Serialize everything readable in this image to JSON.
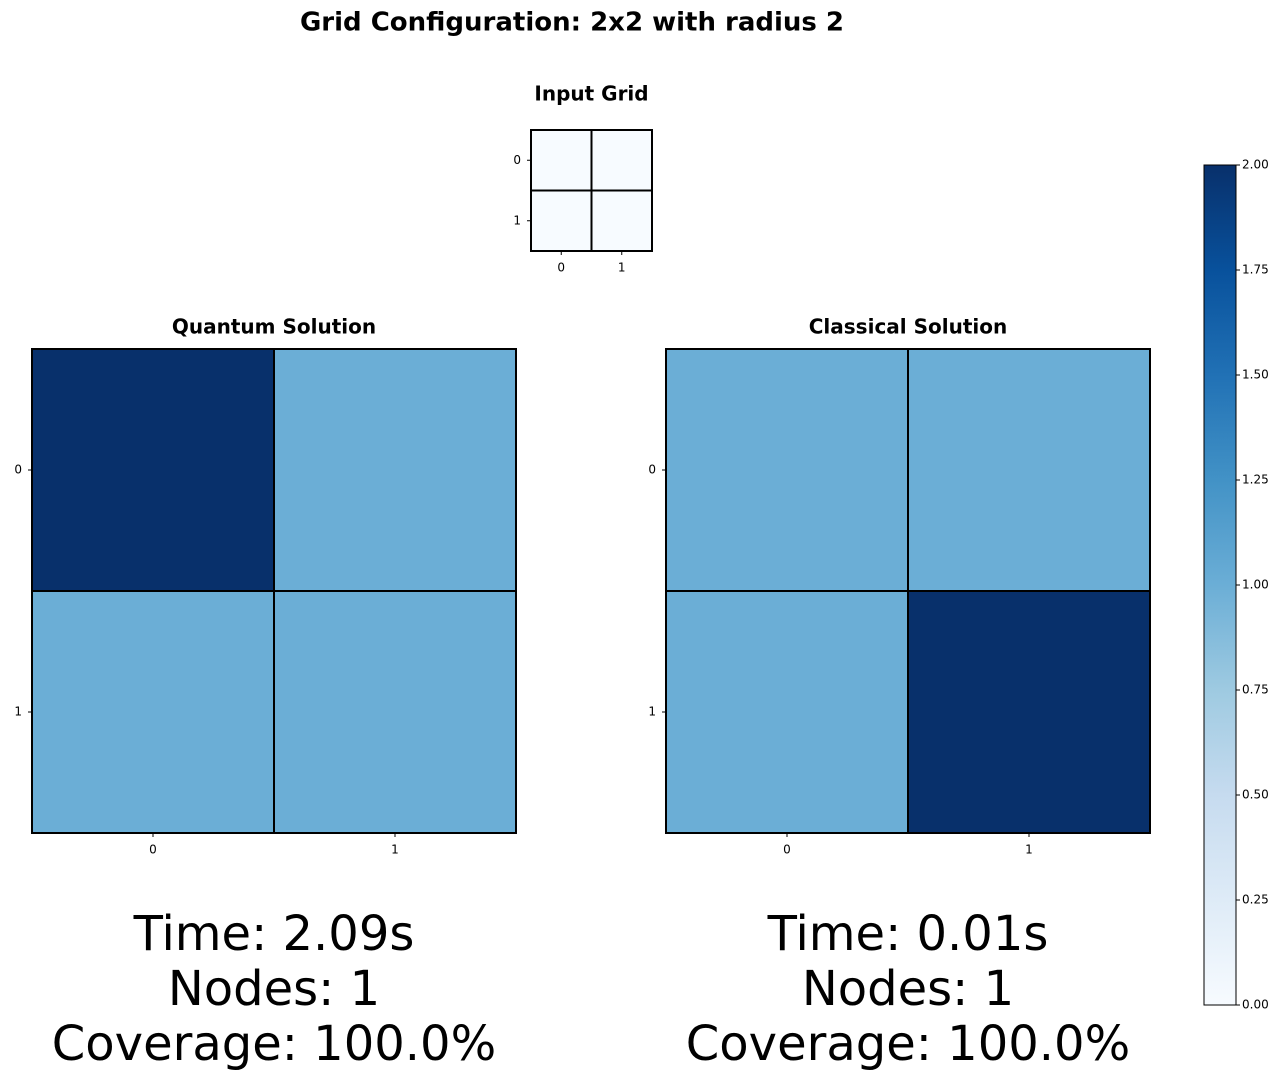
{
  "title": "Grid Configuration: 2x2 with radius 2",
  "colorbar": {
    "clim": [
      0,
      2
    ],
    "ticks": [
      {
        "value": 0,
        "label": "0.00"
      },
      {
        "value": 0.25,
        "label": "0.25"
      },
      {
        "value": 0.5,
        "label": "0.50"
      },
      {
        "value": 0.75,
        "label": "0.75"
      },
      {
        "value": 1,
        "label": "1.00"
      },
      {
        "value": 1.25,
        "label": "1.25"
      },
      {
        "value": 1.5,
        "label": "1.50"
      },
      {
        "value": 1.75,
        "label": "1.75"
      },
      {
        "value": 2,
        "label": "2.00"
      }
    ],
    "colormap": [
      "#f7fbff",
      "#deebf7",
      "#c6dbef",
      "#9ecae1",
      "#6baed6",
      "#4292c6",
      "#2171b5",
      "#08519c",
      "#08306b"
    ]
  },
  "chart_data": [
    {
      "type": "heatmap",
      "title": "Input Grid",
      "xticks": [
        0,
        1
      ],
      "yticks": [
        0,
        1
      ],
      "values": [
        [
          0,
          0
        ],
        [
          0,
          0
        ]
      ]
    },
    {
      "type": "heatmap",
      "title": "Quantum Solution",
      "xticks": [
        0,
        1
      ],
      "yticks": [
        0,
        1
      ],
      "values": [
        [
          2,
          1
        ],
        [
          1,
          1
        ]
      ],
      "annotations": [
        "Time: 2.09s",
        "Nodes: 1",
        "Coverage: 100.0%"
      ]
    },
    {
      "type": "heatmap",
      "title": "Classical Solution",
      "xticks": [
        0,
        1
      ],
      "yticks": [
        0,
        1
      ],
      "values": [
        [
          1,
          1
        ],
        [
          1,
          2
        ]
      ],
      "annotations": [
        "Time: 0.01s",
        "Nodes: 1",
        "Coverage: 100.0%"
      ]
    }
  ]
}
